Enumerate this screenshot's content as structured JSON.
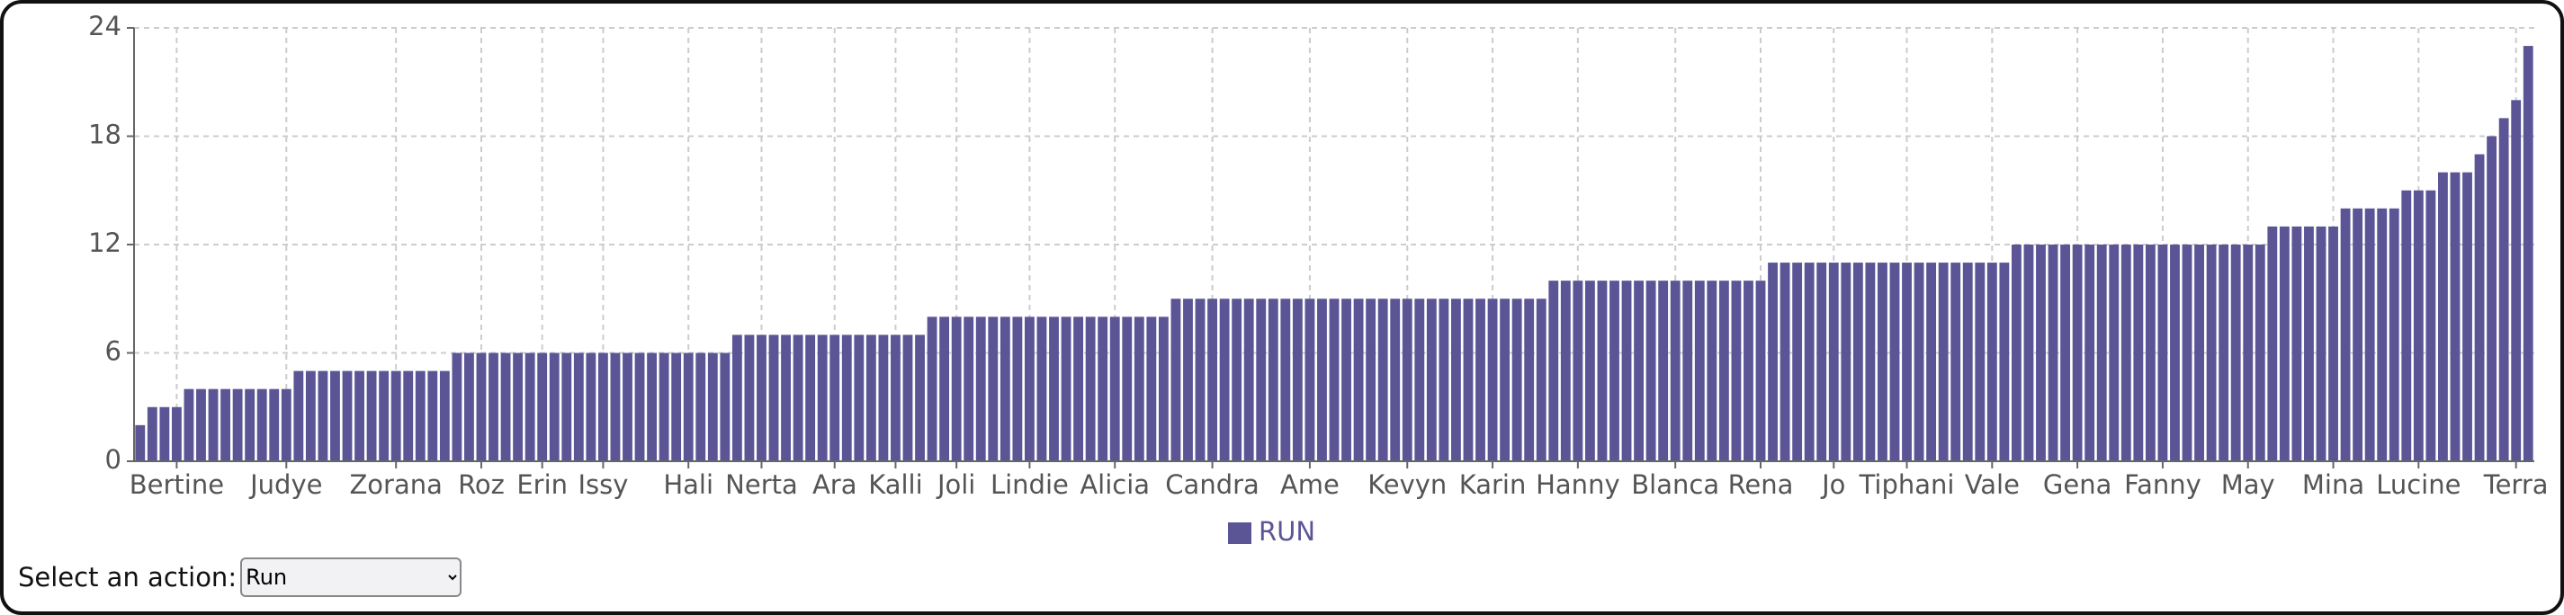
{
  "chart_data": {
    "type": "bar",
    "categories": [
      null,
      null,
      null,
      "Bertine",
      null,
      null,
      null,
      null,
      null,
      null,
      null,
      null,
      "Judye",
      null,
      null,
      null,
      null,
      null,
      null,
      null,
      null,
      "Zorana",
      null,
      null,
      null,
      null,
      null,
      null,
      "Roz",
      null,
      null,
      null,
      null,
      "Erin",
      null,
      null,
      null,
      null,
      "Issy",
      null,
      null,
      null,
      null,
      null,
      null,
      "Hali",
      null,
      null,
      null,
      null,
      null,
      "Nerta",
      null,
      null,
      null,
      null,
      null,
      "Ara",
      null,
      null,
      null,
      null,
      "Kalli",
      null,
      null,
      null,
      null,
      "Joli",
      null,
      null,
      null,
      null,
      null,
      "Lindie",
      null,
      null,
      null,
      null,
      null,
      null,
      "Alicia",
      null,
      null,
      null,
      null,
      null,
      null,
      null,
      "Candra",
      null,
      null,
      null,
      null,
      null,
      null,
      null,
      "Ame",
      null,
      null,
      null,
      null,
      null,
      null,
      null,
      "Kevyn",
      null,
      null,
      null,
      null,
      null,
      null,
      "Karin",
      null,
      null,
      null,
      null,
      null,
      null,
      "Hanny",
      null,
      null,
      null,
      null,
      null,
      null,
      null,
      "Blanca",
      null,
      null,
      null,
      null,
      null,
      null,
      "Rena",
      null,
      null,
      null,
      null,
      null,
      "Jo",
      null,
      null,
      null,
      null,
      null,
      "Tiphani",
      null,
      null,
      null,
      null,
      null,
      null,
      "Vale",
      null,
      null,
      null,
      null,
      null,
      null,
      "Gena",
      null,
      null,
      null,
      null,
      null,
      null,
      "Fanny",
      null,
      null,
      null,
      null,
      null,
      null,
      "May",
      null,
      null,
      null,
      null,
      null,
      null,
      "Mina",
      null,
      null,
      null,
      null,
      null,
      null,
      "Lucine",
      null,
      null,
      null,
      null,
      null,
      null,
      null,
      "Terra",
      null
    ],
    "series": [
      {
        "name": "RUN",
        "color": "#5b5596",
        "values": [
          2,
          3,
          3,
          3,
          4,
          4,
          4,
          4,
          4,
          4,
          4,
          4,
          4,
          5,
          5,
          5,
          5,
          5,
          5,
          5,
          5,
          5,
          5,
          5,
          5,
          5,
          6,
          6,
          6,
          6,
          6,
          6,
          6,
          6,
          6,
          6,
          6,
          6,
          6,
          6,
          6,
          6,
          6,
          6,
          6,
          6,
          6,
          6,
          6,
          7,
          7,
          7,
          7,
          7,
          7,
          7,
          7,
          7,
          7,
          7,
          7,
          7,
          7,
          7,
          7,
          8,
          8,
          8,
          8,
          8,
          8,
          8,
          8,
          8,
          8,
          8,
          8,
          8,
          8,
          8,
          8,
          8,
          8,
          8,
          8,
          9,
          9,
          9,
          9,
          9,
          9,
          9,
          9,
          9,
          9,
          9,
          9,
          9,
          9,
          9,
          9,
          9,
          9,
          9,
          9,
          9,
          9,
          9,
          9,
          9,
          9,
          9,
          9,
          9,
          9,
          9,
          10,
          10,
          10,
          10,
          10,
          10,
          10,
          10,
          10,
          10,
          10,
          10,
          10,
          10,
          10,
          10,
          10,
          10,
          11,
          11,
          11,
          11,
          11,
          11,
          11,
          11,
          11,
          11,
          11,
          11,
          11,
          11,
          11,
          11,
          11,
          11,
          11,
          11,
          12,
          12,
          12,
          12,
          12,
          12,
          12,
          12,
          12,
          12,
          12,
          12,
          12,
          12,
          12,
          12,
          12,
          12,
          12,
          12,
          12,
          13,
          13,
          13,
          13,
          13,
          13,
          14,
          14,
          14,
          14,
          14,
          15,
          15,
          15,
          16,
          16,
          16,
          17,
          18,
          19,
          20,
          23
        ]
      }
    ],
    "ylim": [
      0,
      24
    ],
    "yticks": [
      0,
      6,
      12,
      18,
      24
    ],
    "grid": true
  },
  "select": {
    "label": "Select an action:",
    "options": [
      "Run"
    ]
  }
}
